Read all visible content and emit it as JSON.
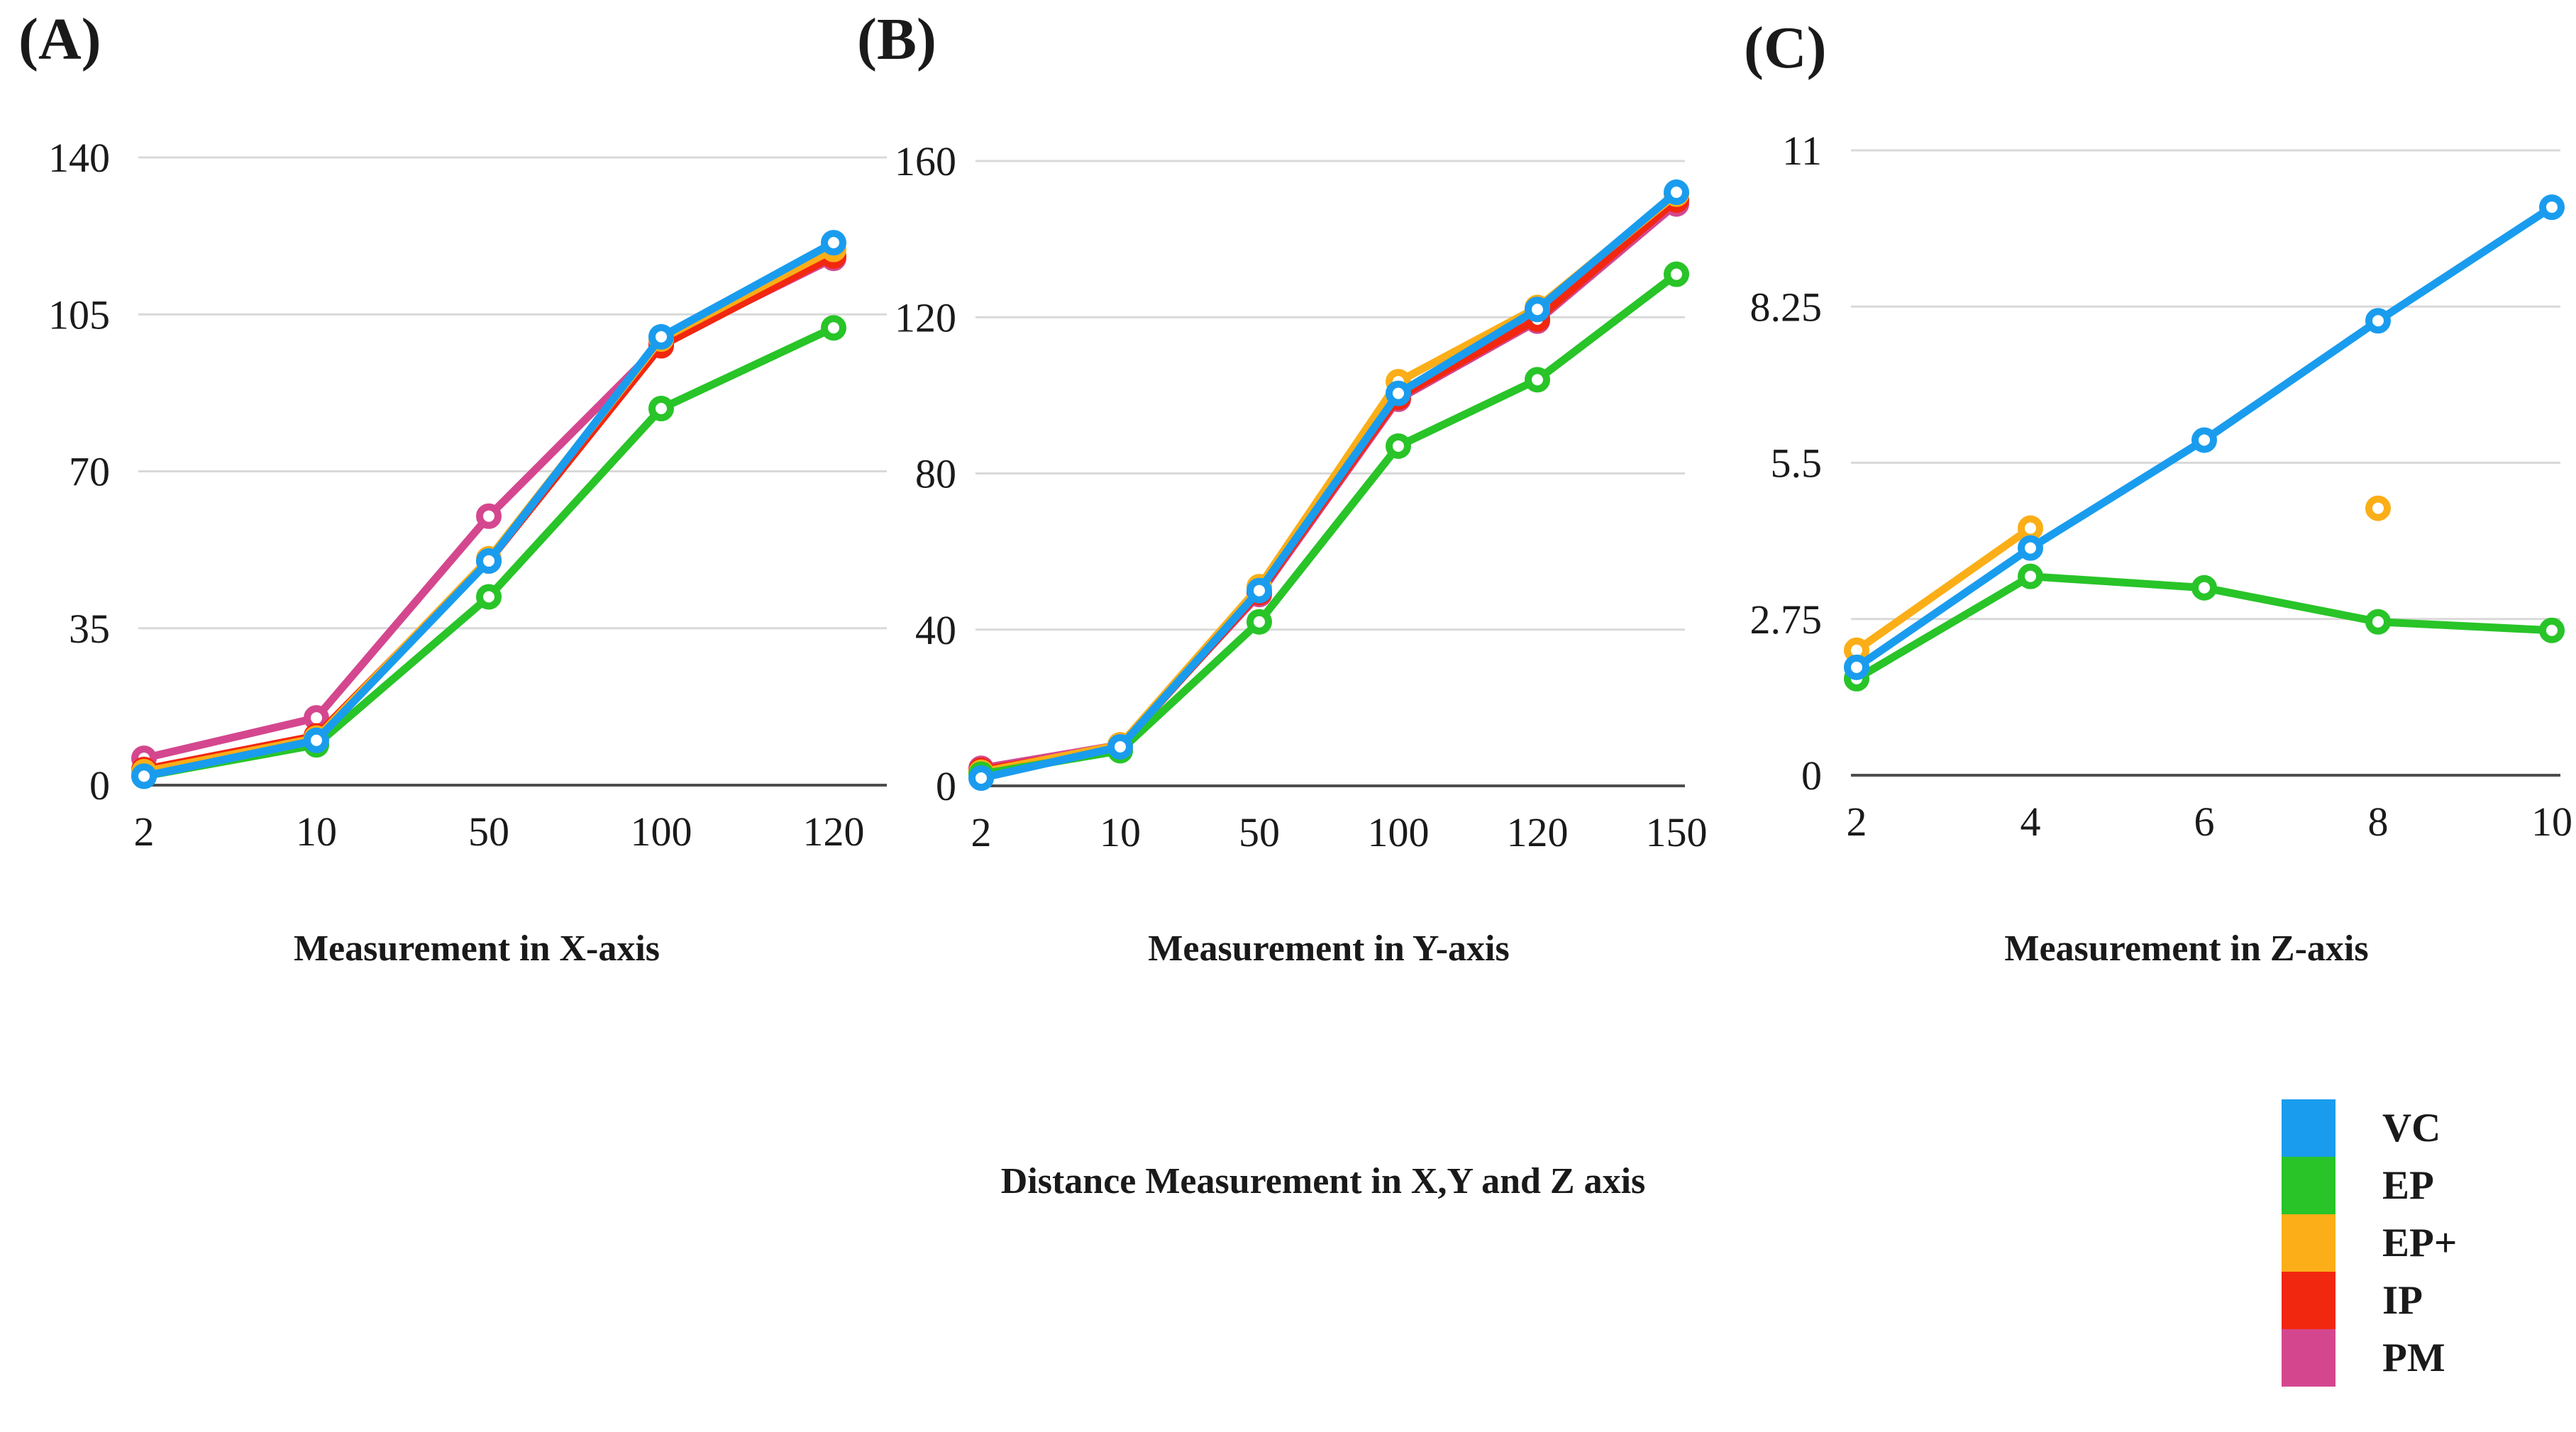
{
  "figure_title": "Distance Measurement in X,Y and Z axis",
  "colors": {
    "grid": "#d9d9d9",
    "axis_line": "#4d4d4d",
    "text": "#1a1a1a",
    "background": "#ffffff"
  },
  "chart_data": [
    {
      "type": "line",
      "panel_label": "(A)",
      "xlabel": "Measurement in X-axis",
      "ylabel": "",
      "categories": [
        "2",
        "10",
        "50",
        "100",
        "120"
      ],
      "ylim": [
        0,
        140
      ],
      "yticks": [
        0,
        35,
        70,
        105,
        140
      ],
      "ytick_labels": [
        "0",
        "35",
        "70",
        "105",
        "140"
      ],
      "grid": true,
      "legend_position": "none",
      "series": [
        {
          "name": "VC",
          "color": "#1a9cee",
          "values": [
            2,
            10,
            50,
            100,
            121
          ]
        },
        {
          "name": "EP",
          "color": "#28c428",
          "values": [
            2,
            9,
            42,
            84,
            102
          ]
        },
        {
          "name": "EP+",
          "color": "#fbae17",
          "values": [
            3,
            10.5,
            50.5,
            99.5,
            119.5
          ]
        },
        {
          "name": "IP",
          "color": "#f2270f",
          "values": [
            3.5,
            11,
            50,
            98,
            118
          ]
        },
        {
          "name": "PM",
          "color": "#d4478f",
          "values": [
            6,
            15,
            60,
            98.5,
            117.5
          ]
        }
      ]
    },
    {
      "type": "line",
      "panel_label": "(B)",
      "xlabel": "Measurement in Y-axis",
      "ylabel": "",
      "categories": [
        "2",
        "10",
        "50",
        "100",
        "120",
        "150"
      ],
      "ylim": [
        0,
        160
      ],
      "yticks": [
        0,
        40,
        80,
        120,
        160
      ],
      "ytick_labels": [
        "0",
        "40",
        "80",
        "120",
        "160"
      ],
      "grid": true,
      "legend_position": "none",
      "series": [
        {
          "name": "VC",
          "color": "#1a9cee",
          "values": [
            2,
            10,
            50,
            100.5,
            122,
            152
          ]
        },
        {
          "name": "EP",
          "color": "#28c428",
          "values": [
            3,
            9,
            42,
            87,
            104,
            131
          ]
        },
        {
          "name": "EP+",
          "color": "#fbae17",
          "values": [
            3.5,
            10.5,
            51,
            103.5,
            122.5,
            151.5
          ]
        },
        {
          "name": "IP",
          "color": "#f2270f",
          "values": [
            4,
            10,
            49.5,
            99.5,
            119.5,
            150
          ]
        },
        {
          "name": "PM",
          "color": "#d4478f",
          "values": [
            4.5,
            10.5,
            49,
            99,
            119,
            149
          ]
        }
      ]
    },
    {
      "type": "line",
      "panel_label": "(C)",
      "xlabel": "Measurement in Z-axis",
      "ylabel": "",
      "categories": [
        "2",
        "4",
        "6",
        "8",
        "10"
      ],
      "ylim": [
        0,
        11
      ],
      "yticks": [
        0,
        2.75,
        5.5,
        8.25,
        11
      ],
      "ytick_labels": [
        "0",
        "2.75",
        "5.5",
        "8.25",
        "11"
      ],
      "grid": true,
      "legend_position": "none",
      "series": [
        {
          "name": "VC",
          "color": "#1a9cee",
          "values": [
            1.9,
            4,
            5.9,
            8,
            10
          ]
        },
        {
          "name": "EP",
          "color": "#28c428",
          "values": [
            1.7,
            3.5,
            3.3,
            2.7,
            2.55
          ]
        },
        {
          "name": "EP+",
          "color": "#fbae17",
          "values": [
            2.2,
            4.35,
            null,
            4.7,
            null
          ]
        }
      ]
    }
  ],
  "legend": {
    "position": "bottom-right",
    "items": [
      {
        "label": "VC",
        "color": "#1a9cee"
      },
      {
        "label": "EP",
        "color": "#28c428"
      },
      {
        "label": "EP+",
        "color": "#fbae17"
      },
      {
        "label": "IP",
        "color": "#f2270f"
      },
      {
        "label": "PM",
        "color": "#d4478f"
      }
    ]
  }
}
